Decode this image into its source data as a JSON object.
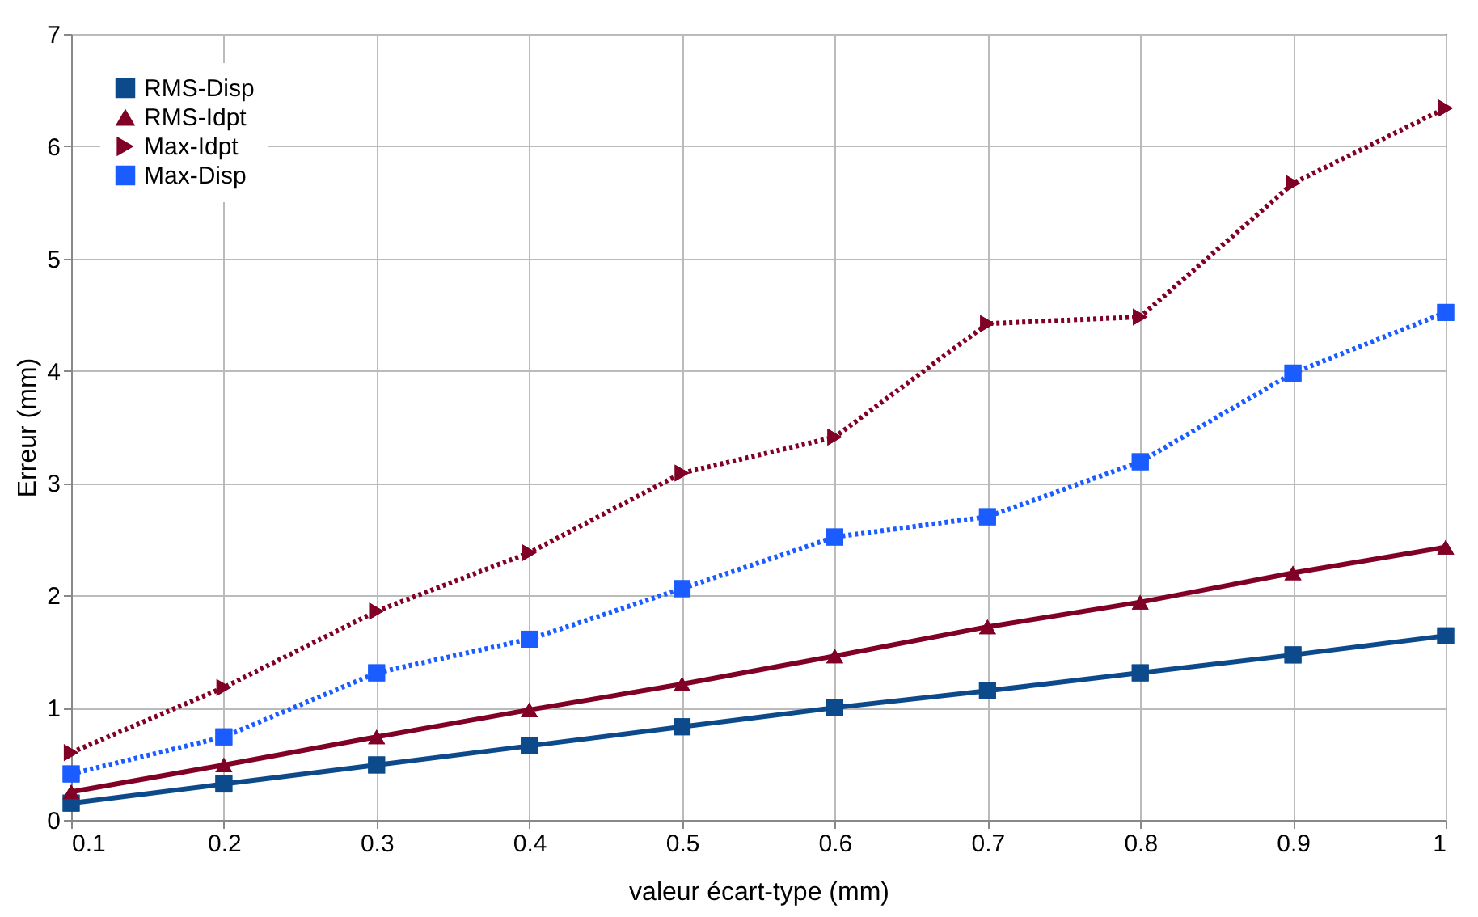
{
  "chart_data": {
    "type": "line",
    "xlabel": "valeur écart-type (mm)",
    "ylabel": "Erreur (mm)",
    "x": [
      0.1,
      0.2,
      0.3,
      0.4,
      0.5,
      0.6,
      0.7,
      0.8,
      0.9,
      1.0
    ],
    "xlim": [
      0.1,
      1.0
    ],
    "xticks": [
      0.1,
      0.2,
      0.3,
      0.4,
      0.5,
      0.6,
      0.7,
      0.8,
      0.9,
      1
    ],
    "ylim": [
      0,
      7
    ],
    "yticks": [
      0,
      1,
      2,
      3,
      4,
      5,
      6,
      7
    ],
    "grid": true,
    "legend": "top left",
    "series": [
      {
        "name": "RMS-Disp",
        "color": "#0d4a8c",
        "marker": "square",
        "line_style": "solid",
        "values": [
          0.15,
          0.32,
          0.49,
          0.66,
          0.83,
          1.0,
          1.15,
          1.31,
          1.47,
          1.64
        ]
      },
      {
        "name": "RMS-Idpt",
        "color": "#800026",
        "marker": "triangle",
        "line_style": "solid",
        "values": [
          0.25,
          0.49,
          0.74,
          0.98,
          1.21,
          1.46,
          1.72,
          1.94,
          2.2,
          2.43
        ]
      },
      {
        "name": "Max-Idpt",
        "color": "#800026",
        "marker": "triangle-right",
        "line_style": "dotted",
        "values": [
          0.6,
          1.18,
          1.86,
          2.38,
          3.09,
          3.41,
          4.42,
          4.48,
          5.67,
          6.34
        ]
      },
      {
        "name": "Max-Disp",
        "color": "#1a5cff",
        "marker": "square",
        "line_style": "dotted",
        "values": [
          0.41,
          0.74,
          1.31,
          1.61,
          2.06,
          2.52,
          2.7,
          3.19,
          3.98,
          4.52
        ]
      }
    ]
  }
}
